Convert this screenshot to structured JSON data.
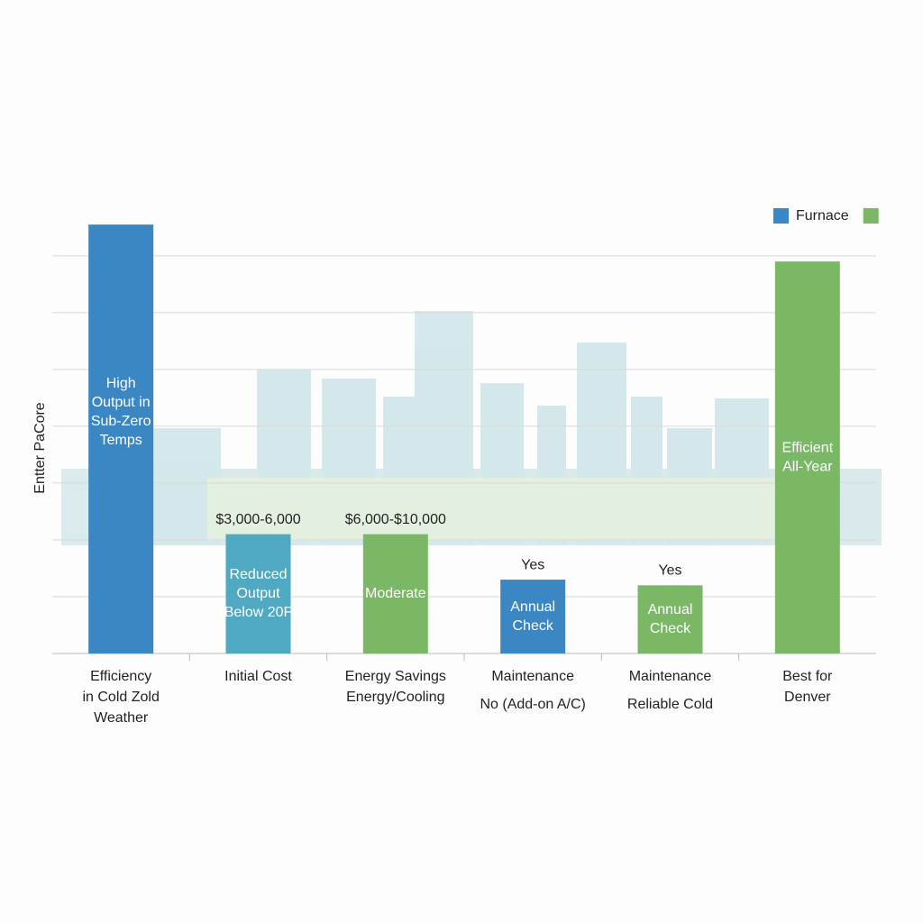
{
  "chart_data": {
    "type": "bar",
    "y_label": "Entter PaCore",
    "categories": [
      [
        "Efficiency",
        "in Cold Zold",
        "Weather"
      ],
      [
        "Initial Cost"
      ],
      [
        "Energy Savings",
        "Energy/Cooling"
      ],
      [
        "Maintenance",
        "No (Add-on A/C)"
      ],
      [
        "Maintenance",
        "Reliable Cold"
      ],
      [
        "Best for",
        "Denver"
      ]
    ],
    "values": [
      7.55,
      2.1,
      2.1,
      1.3,
      1.2,
      6.9
    ],
    "colors": [
      "#3a87c4",
      "#4fa9c2",
      "#7ab866",
      "#3a87c4",
      "#7ab866",
      "#7ab866"
    ],
    "bar_labels": [
      [
        "High",
        "Output in",
        "Sub-Zero",
        "Temps"
      ],
      [
        "Reduced",
        "Output",
        "Below 20F"
      ],
      [
        "Moderate"
      ],
      [
        "Annual",
        "Check"
      ],
      [
        "Annual",
        "Check"
      ],
      [
        "Efficient",
        "All-Year"
      ]
    ],
    "top_labels": [
      null,
      "$3,000-6,000",
      "$6,000-$10,000",
      "Yes",
      "Yes",
      null
    ],
    "legend": [
      {
        "name": "Furnace",
        "color": "#3a87c4"
      },
      {
        "color": "#7ab866"
      }
    ],
    "ylim": [
      0,
      7.6
    ],
    "yticks": [
      1,
      2,
      3,
      4,
      5,
      6,
      7
    ],
    "grid": true
  }
}
